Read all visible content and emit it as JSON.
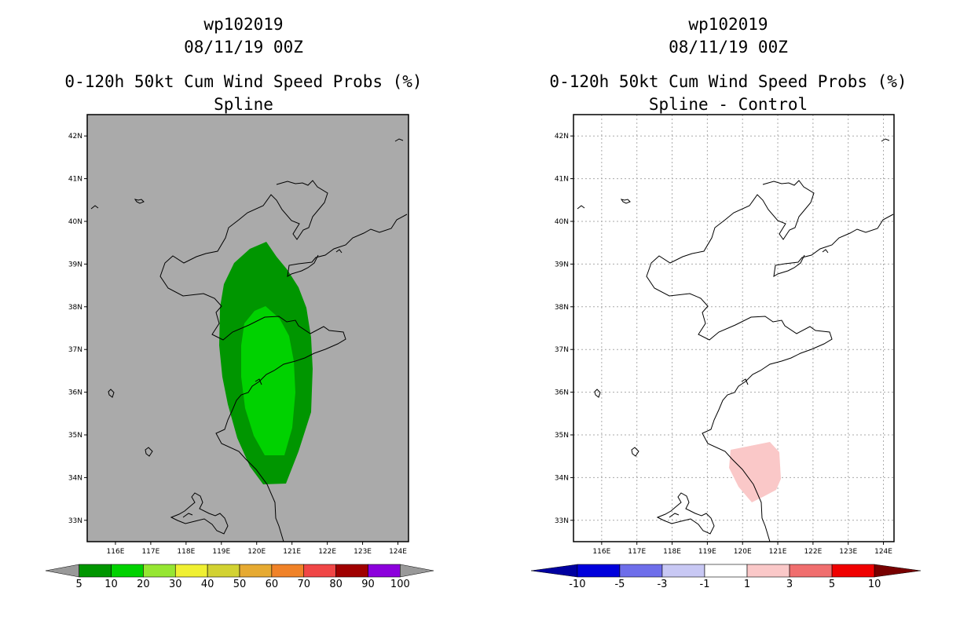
{
  "panels": [
    {
      "storm_id": "wp102019",
      "date": "08/11/19 00Z",
      "product": "0-120h 50kt Cum Wind Speed Probs (%)",
      "subtitle": "Spline",
      "background": "#aaaaaa",
      "gridlines": false
    },
    {
      "storm_id": "wp102019",
      "date": "08/11/19 00Z",
      "product": "0-120h 50kt Cum Wind Speed Probs (%)",
      "subtitle": "Spline - Control",
      "background": "#ffffff",
      "gridlines": true
    }
  ],
  "map": {
    "lon_range": [
      115.2,
      124.3
    ],
    "lat_range": [
      32.5,
      42.5
    ],
    "lon_ticks": [
      "116E",
      "117E",
      "118E",
      "119E",
      "120E",
      "121E",
      "122E",
      "123E",
      "124E"
    ],
    "lat_ticks": [
      "33N",
      "34N",
      "35N",
      "36N",
      "37N",
      "38N",
      "39N",
      "40N",
      "41N",
      "42N"
    ]
  },
  "colorbars": [
    {
      "labels": [
        "5",
        "10",
        "20",
        "30",
        "40",
        "50",
        "60",
        "70",
        "80",
        "90",
        "100"
      ],
      "colors": [
        "#009600",
        "#00d200",
        "#96e632",
        "#f0f032",
        "#d2d232",
        "#e6aa32",
        "#f08228",
        "#f04646",
        "#a00000",
        "#8c00dc"
      ],
      "end_colors": [
        "#999999",
        "#999999"
      ]
    },
    {
      "labels": [
        "-10",
        "-5",
        "-3",
        "-1",
        "1",
        "3",
        "5",
        "10"
      ],
      "colors": [
        "#0000dc",
        "#6e6eea",
        "#c8c8f4",
        "#ffffff",
        "#fac8c8",
        "#f06e6e",
        "#f00000"
      ],
      "end_colors": [
        "#0000a0",
        "#780000"
      ]
    }
  ],
  "fields": {
    "outer_color": "#009600",
    "inner_color": "#00d200",
    "diff_color": "#fac8c8"
  }
}
